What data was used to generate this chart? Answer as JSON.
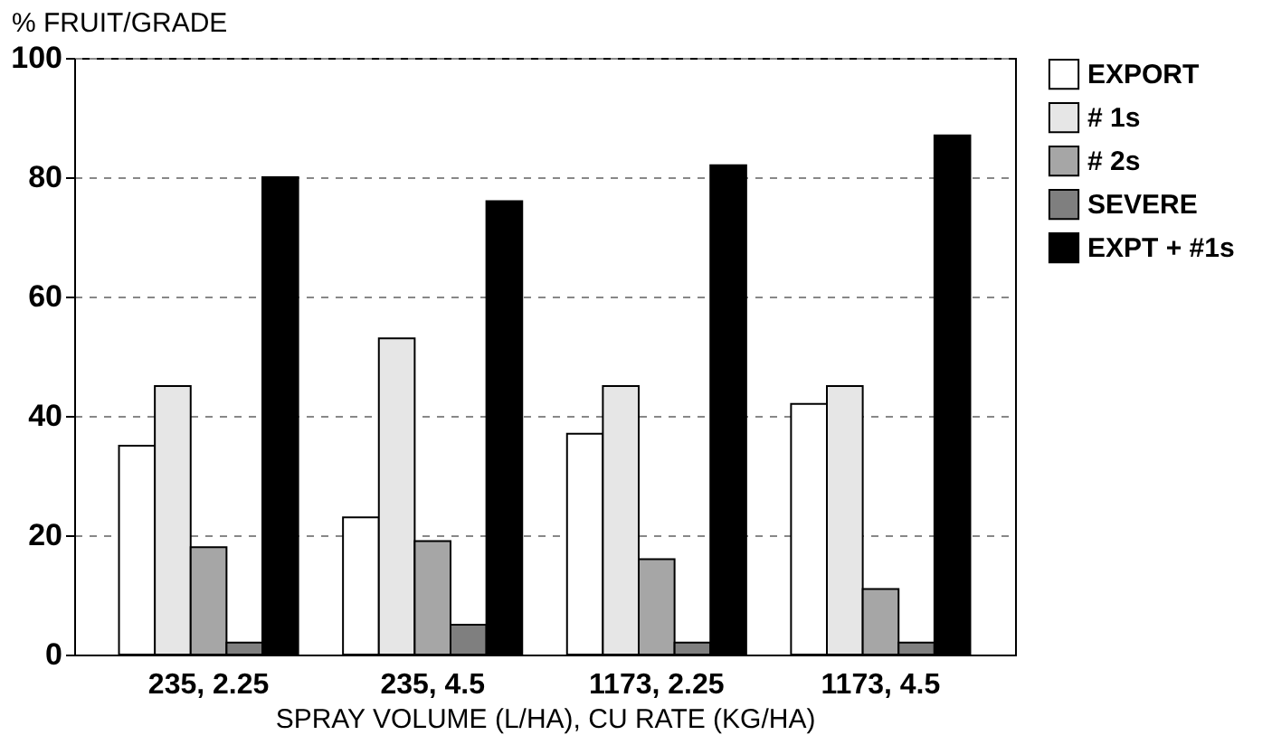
{
  "chart_data": {
    "type": "bar",
    "xlabel": "SPRAY VOLUME (L/HA), CU RATE (KG/HA)",
    "ylabel": "% FRUIT/GRADE",
    "categories": [
      "235, 2.25",
      "235, 4.5",
      "1173, 2.25",
      "1173, 4.5"
    ],
    "series": [
      {
        "name": "EXPORT",
        "color": "#ffffff",
        "values": [
          35,
          23,
          37,
          42
        ]
      },
      {
        "name": "# 1s",
        "color": "#e6e6e6",
        "values": [
          45,
          53,
          45,
          45
        ]
      },
      {
        "name": "# 2s",
        "color": "#a6a6a6",
        "values": [
          18,
          19,
          16,
          11
        ]
      },
      {
        "name": "SEVERE",
        "color": "#7f7f7f",
        "values": [
          2,
          5,
          2,
          2
        ]
      },
      {
        "name": "EXPT + #1s",
        "color": "#000000",
        "values": [
          80,
          76,
          82,
          87
        ]
      }
    ],
    "ylim": [
      0,
      100
    ],
    "yticks": [
      0,
      20,
      40,
      60,
      80,
      100
    ],
    "grid": "y",
    "legend": "right"
  }
}
